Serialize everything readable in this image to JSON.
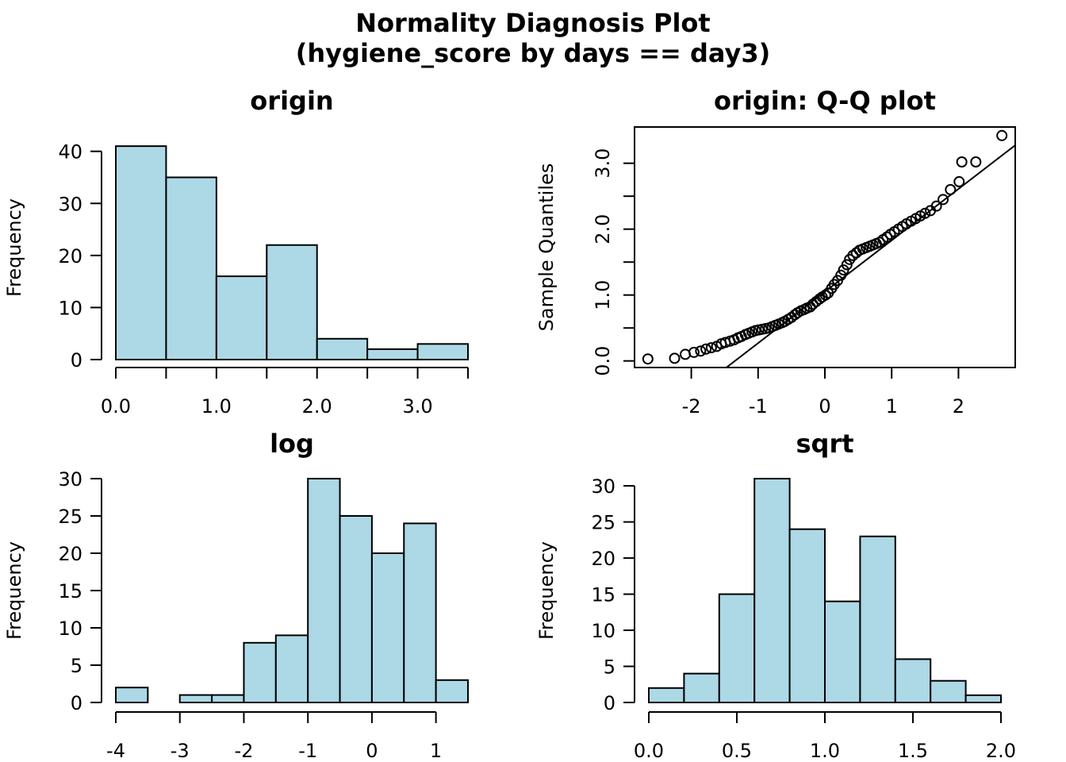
{
  "title": {
    "line1": "Normality Diagnosis Plot",
    "line2": "(hygiene_score by days == day3)"
  },
  "chart_data": [
    {
      "id": "origin",
      "type": "bar",
      "title": "origin",
      "xlabel": "",
      "ylabel": "Frequency",
      "bins": [
        [
          0.0,
          0.5
        ],
        [
          0.5,
          1.0
        ],
        [
          1.0,
          1.5
        ],
        [
          1.5,
          2.0
        ],
        [
          2.0,
          2.5
        ],
        [
          2.5,
          3.0
        ],
        [
          3.0,
          3.5
        ]
      ],
      "values": [
        41,
        35,
        16,
        22,
        4,
        2,
        3
      ],
      "xlim": [
        0,
        3.5
      ],
      "ylim": [
        0,
        43
      ],
      "xticks": [
        0,
        0.5,
        1,
        1.5,
        2,
        2.5,
        3,
        3.5
      ],
      "xtick_labels": [
        "0.0",
        "",
        "1.0",
        "",
        "2.0",
        "",
        "3.0",
        ""
      ],
      "yticks": [
        0,
        10,
        20,
        30,
        40
      ],
      "ytick_labels": [
        "0",
        "10",
        "20",
        "30",
        "40"
      ],
      "bar_color": "#add8e6",
      "grid": false
    },
    {
      "id": "qq",
      "type": "scatter",
      "title": "origin: Q-Q plot",
      "xlabel": "",
      "ylabel": "Sample Quantiles",
      "x": [
        -2.65,
        -2.25,
        -2.09,
        -1.96,
        -1.86,
        -1.78,
        -1.7,
        -1.62,
        -1.55,
        -1.49,
        -1.42,
        -1.36,
        -1.3,
        -1.25,
        -1.19,
        -1.14,
        -1.09,
        -1.04,
        -0.99,
        -0.94,
        -0.89,
        -0.84,
        -0.79,
        -0.74,
        -0.69,
        -0.64,
        -0.6,
        -0.55,
        -0.5,
        -0.45,
        -0.41,
        -0.36,
        -0.31,
        -0.27,
        -0.22,
        -0.18,
        -0.13,
        -0.08,
        -0.04,
        0.01,
        0.05,
        0.1,
        0.14,
        0.19,
        0.24,
        0.28,
        0.33,
        0.37,
        0.42,
        0.47,
        0.52,
        0.57,
        0.62,
        0.67,
        0.72,
        0.77,
        0.82,
        0.87,
        0.93,
        0.98,
        1.04,
        1.1,
        1.16,
        1.22,
        1.29,
        1.36,
        1.43,
        1.5,
        1.58,
        1.67,
        1.77,
        1.88,
        2.01,
        2.05,
        2.26,
        2.65
      ],
      "y": [
        0.03,
        0.04,
        0.1,
        0.13,
        0.15,
        0.18,
        0.2,
        0.22,
        0.26,
        0.28,
        0.3,
        0.32,
        0.35,
        0.37,
        0.4,
        0.42,
        0.44,
        0.46,
        0.47,
        0.48,
        0.49,
        0.5,
        0.52,
        0.54,
        0.56,
        0.58,
        0.6,
        0.63,
        0.66,
        0.7,
        0.73,
        0.76,
        0.78,
        0.8,
        0.82,
        0.86,
        0.9,
        0.94,
        0.97,
        1.0,
        1.03,
        1.1,
        1.16,
        1.22,
        1.3,
        1.38,
        1.46,
        1.54,
        1.6,
        1.64,
        1.68,
        1.7,
        1.72,
        1.74,
        1.76,
        1.78,
        1.8,
        1.84,
        1.88,
        1.92,
        1.96,
        2.0,
        2.04,
        2.08,
        2.12,
        2.16,
        2.2,
        2.24,
        2.28,
        2.35,
        2.45,
        2.6,
        2.72,
        3.02,
        3.02,
        3.42
      ],
      "reference_line": {
        "intercept": 1.05,
        "slope": 0.78
      },
      "xlim": [
        -2.85,
        2.85
      ],
      "ylim": [
        -0.1,
        3.55
      ],
      "xticks": [
        -2,
        -1,
        0,
        1,
        2
      ],
      "xtick_labels": [
        "-2",
        "-1",
        "0",
        "1",
        "2"
      ],
      "yticks": [
        0,
        0.5,
        1,
        1.5,
        2,
        2.5,
        3
      ],
      "ytick_labels": [
        "0.0",
        "",
        "1.0",
        "",
        "2.0",
        "",
        "3.0"
      ],
      "grid": false
    },
    {
      "id": "log",
      "type": "bar",
      "title": "log",
      "xlabel": "",
      "ylabel": "Frequency",
      "bins": [
        [
          -4.0,
          -3.5
        ],
        [
          -3.5,
          -3.0
        ],
        [
          -3.0,
          -2.5
        ],
        [
          -2.5,
          -2.0
        ],
        [
          -2.0,
          -1.5
        ],
        [
          -1.5,
          -1.0
        ],
        [
          -1.0,
          -0.5
        ],
        [
          -0.5,
          0.0
        ],
        [
          0.0,
          0.5
        ],
        [
          0.5,
          1.0
        ],
        [
          1.0,
          1.5
        ]
      ],
      "values": [
        2,
        0,
        1,
        1,
        8,
        9,
        30,
        25,
        20,
        24,
        3
      ],
      "xlim": [
        -4,
        1.5
      ],
      "ylim": [
        0,
        30
      ],
      "xticks": [
        -4,
        -3,
        -2,
        -1,
        0,
        1
      ],
      "xtick_labels": [
        "-4",
        "-3",
        "-2",
        "-1",
        "0",
        "1"
      ],
      "yticks": [
        0,
        5,
        10,
        15,
        20,
        25,
        30
      ],
      "ytick_labels": [
        "0",
        "5",
        "10",
        "15",
        "20",
        "25",
        "30"
      ],
      "bar_color": "#add8e6",
      "grid": false
    },
    {
      "id": "sqrt",
      "type": "bar",
      "title": "sqrt",
      "xlabel": "",
      "ylabel": "Frequency",
      "bins": [
        [
          0.0,
          0.2
        ],
        [
          0.2,
          0.4
        ],
        [
          0.4,
          0.6
        ],
        [
          0.6,
          0.8
        ],
        [
          0.8,
          1.0
        ],
        [
          1.0,
          1.2
        ],
        [
          1.2,
          1.4
        ],
        [
          1.4,
          1.6
        ],
        [
          1.6,
          1.8
        ],
        [
          1.8,
          2.0
        ]
      ],
      "values": [
        2,
        4,
        15,
        31,
        24,
        14,
        23,
        6,
        3,
        1
      ],
      "xlim": [
        0,
        2.0
      ],
      "ylim": [
        0,
        31
      ],
      "xticks": [
        0,
        0.5,
        1,
        1.5,
        2
      ],
      "xtick_labels": [
        "0.0",
        "0.5",
        "1.0",
        "1.5",
        "2.0"
      ],
      "yticks": [
        0,
        5,
        10,
        15,
        20,
        25,
        30
      ],
      "ytick_labels": [
        "0",
        "5",
        "10",
        "15",
        "20",
        "25",
        "30"
      ],
      "bar_color": "#add8e6",
      "grid": false
    }
  ]
}
